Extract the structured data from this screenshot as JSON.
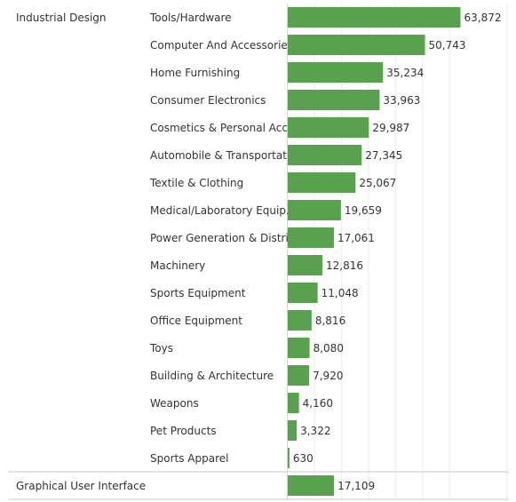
{
  "chart_data": {
    "type": "bar",
    "orientation": "horizontal",
    "grid": true,
    "xlim": [
      0,
      68000
    ],
    "bar_color": "#59a14f",
    "groups": [
      {
        "name": "Industrial Design",
        "categories": [
          "Tools/Hardware",
          "Computer And Accessories",
          "Home Furnishing",
          "Consumer Electronics",
          "Cosmetics & Personal Acc..",
          "Automobile & Transportat..",
          "Textile & Clothing",
          "Medical/Laboratory Equip..",
          "Power Generation & Distri..",
          "Machinery",
          "Sports Equipment",
          "Office Equipment",
          "Toys",
          "Building & Architecture",
          "Weapons",
          "Pet Products",
          "Sports Apparel"
        ],
        "values": [
          63872,
          50743,
          35234,
          33963,
          29987,
          27345,
          25067,
          19659,
          17061,
          12816,
          11048,
          8816,
          8080,
          7920,
          4160,
          3322,
          630
        ],
        "value_labels": [
          "63,872",
          "50,743",
          "35,234",
          "33,963",
          "29,987",
          "27,345",
          "25,067",
          "19,659",
          "17,061",
          "12,816",
          "11,048",
          "8,816",
          "8,080",
          "7,920",
          "4,160",
          "3,322",
          "630"
        ]
      },
      {
        "name": "Graphical User Interface",
        "categories": [
          ""
        ],
        "values": [
          17109
        ],
        "value_labels": [
          "17,109"
        ]
      }
    ]
  }
}
